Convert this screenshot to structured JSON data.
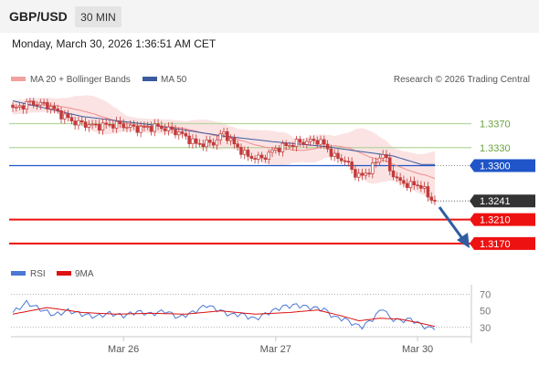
{
  "header": {
    "symbol": "GBP/USD",
    "timeframe": "30 MIN",
    "datetime": "Monday, March 30, 2026 1:36:51 AM CET"
  },
  "legend": {
    "ma20_bb": "MA 20 + Bollinger Bands",
    "ma50": "MA 50",
    "credit": "Research © 2026 Trading Central",
    "rsi": "RSI",
    "ma9": "9MA"
  },
  "colors": {
    "bb_fill": "#fbe3e3",
    "ma20": "#f08c8c",
    "ma50": "#3a5ba0",
    "candle": "#c23a3a",
    "support_red": "#ee1111",
    "pivot_blue": "#1f55c8",
    "resistance_green": "#b5d59e",
    "resistance_label": "#6aa33e",
    "rsi": "#4a78d4",
    "rsi_ma": "#dd1111",
    "arrow": "#2f5da0"
  },
  "chart_data": [
    {
      "type": "candlestick",
      "ylim": [
        1.3147,
        1.3424
      ],
      "x_labels": [
        "Mar 26",
        "Mar 27",
        "Mar 30"
      ],
      "x_label_index": [
        32,
        76,
        117
      ],
      "levels": [
        {
          "value": 1.337,
          "label": "1.3370",
          "kind": "resistance"
        },
        {
          "value": 1.333,
          "label": "1.3330",
          "kind": "resistance"
        },
        {
          "value": 1.33,
          "label": "1.3300",
          "kind": "pivot"
        },
        {
          "value": 1.3241,
          "label": "1.3241",
          "kind": "last"
        },
        {
          "value": 1.321,
          "label": "1.3210",
          "kind": "support"
        },
        {
          "value": 1.317,
          "label": "1.3170",
          "kind": "support"
        }
      ],
      "series": [
        {
          "name": "MA 20 + Bollinger Bands"
        },
        {
          "name": "MA 50"
        }
      ],
      "close_anchors": [
        [
          0,
          1.3394
        ],
        [
          5,
          1.3405
        ],
        [
          10,
          1.3401
        ],
        [
          14,
          1.3385
        ],
        [
          18,
          1.3372
        ],
        [
          24,
          1.3366
        ],
        [
          30,
          1.3369
        ],
        [
          36,
          1.3362
        ],
        [
          42,
          1.3365
        ],
        [
          48,
          1.3355
        ],
        [
          53,
          1.3336
        ],
        [
          58,
          1.3338
        ],
        [
          61,
          1.3355
        ],
        [
          64,
          1.3335
        ],
        [
          68,
          1.3315
        ],
        [
          72,
          1.3312
        ],
        [
          76,
          1.3328
        ],
        [
          82,
          1.3338
        ],
        [
          88,
          1.3342
        ],
        [
          90,
          1.3335
        ],
        [
          93,
          1.3314
        ],
        [
          96,
          1.3309
        ],
        [
          99,
          1.3286
        ],
        [
          101,
          1.3282
        ],
        [
          104,
          1.3298
        ],
        [
          107,
          1.3322
        ],
        [
          109,
          1.3292
        ],
        [
          112,
          1.3272
        ],
        [
          115,
          1.3268
        ],
        [
          118,
          1.3267
        ],
        [
          120,
          1.3249
        ],
        [
          122,
          1.3241
        ]
      ],
      "ma50_anchors": [
        [
          0,
          1.3408
        ],
        [
          20,
          1.3382
        ],
        [
          40,
          1.3368
        ],
        [
          60,
          1.335
        ],
        [
          75,
          1.334
        ],
        [
          90,
          1.3332
        ],
        [
          100,
          1.3324
        ],
        [
          110,
          1.3316
        ],
        [
          118,
          1.3302
        ]
      ]
    },
    {
      "type": "line",
      "title": "RSI",
      "ylim": [
        22,
        75
      ],
      "yticks": [
        70,
        50,
        30
      ],
      "reference_lines": [
        70,
        30
      ],
      "series": [
        {
          "name": "RSI",
          "anchors": [
            [
              0,
              48
            ],
            [
              4,
              60
            ],
            [
              8,
              52
            ],
            [
              12,
              45
            ],
            [
              16,
              50
            ],
            [
              20,
              46
            ],
            [
              24,
              43
            ],
            [
              28,
              47
            ],
            [
              32,
              44
            ],
            [
              36,
              49
            ],
            [
              40,
              46
            ],
            [
              44,
              50
            ],
            [
              48,
              42
            ],
            [
              52,
              48
            ],
            [
              56,
              57
            ],
            [
              60,
              50
            ],
            [
              63,
              45
            ],
            [
              66,
              46
            ],
            [
              70,
              40
            ],
            [
              74,
              48
            ],
            [
              78,
              55
            ],
            [
              82,
              57
            ],
            [
              86,
              54
            ],
            [
              90,
              52
            ],
            [
              93,
              42
            ],
            [
              96,
              40
            ],
            [
              99,
              33
            ],
            [
              101,
              31
            ],
            [
              104,
              40
            ],
            [
              107,
              54
            ],
            [
              109,
              41
            ],
            [
              112,
              38
            ],
            [
              115,
              40
            ],
            [
              118,
              33
            ],
            [
              120,
              29
            ],
            [
              122,
              30
            ]
          ]
        },
        {
          "name": "9MA",
          "anchors": [
            [
              0,
              46
            ],
            [
              10,
              54
            ],
            [
              20,
              48
            ],
            [
              30,
              46
            ],
            [
              40,
              47
            ],
            [
              50,
              46
            ],
            [
              60,
              50
            ],
            [
              70,
              46
            ],
            [
              80,
              48
            ],
            [
              88,
              51
            ],
            [
              95,
              44
            ],
            [
              100,
              38
            ],
            [
              106,
              41
            ],
            [
              112,
              40
            ],
            [
              118,
              35
            ],
            [
              122,
              31
            ]
          ]
        }
      ]
    }
  ]
}
